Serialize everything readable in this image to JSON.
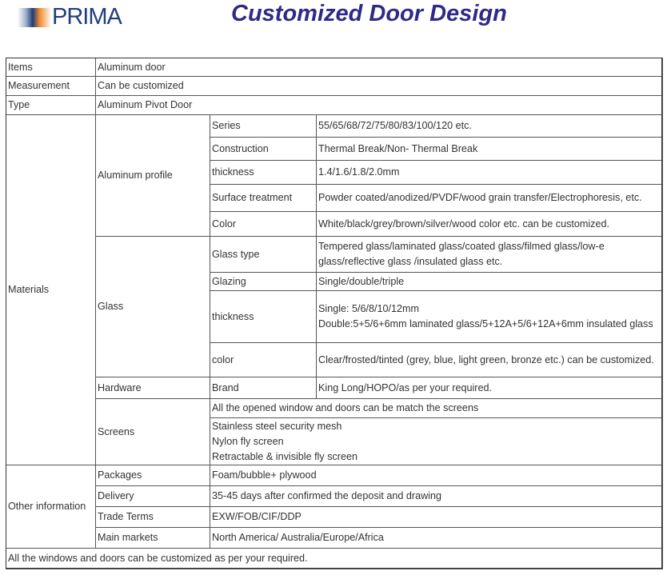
{
  "logo": {
    "text": "PRIMA"
  },
  "title": "Customized Door Design",
  "rows": {
    "items": {
      "label": "Items",
      "value": "Aluminum door"
    },
    "measurement": {
      "label": "Measurement",
      "value": "Can be customized"
    },
    "type": {
      "label": "Type",
      "value": "Aluminum Pivot Door"
    },
    "materials": "Materials",
    "aluminum_profile": "Aluminum profile",
    "series": {
      "label": "Series",
      "value": "55/65/68/72/75/80/83/100/120 etc."
    },
    "construction": {
      "label": "Construction",
      "value": "Thermal Break/Non- Thermal Break"
    },
    "thickness": {
      "label": "thickness",
      "value": "1.4/1.6/1.8/2.0mm"
    },
    "surface": {
      "label": "Surface treatment",
      "value": "Powder coated/anodized/PVDF/wood grain transfer/Electrophoresis, etc."
    },
    "color": {
      "label": "Color",
      "value": "White/black/grey/brown/silver/wood color etc. can be customized."
    },
    "glass": "Glass",
    "glass_type": {
      "label": "Glass type",
      "value": "Tempered glass/laminated glass/coated glass/filmed glass/low-e glass/reflective glass /insulated glass etc."
    },
    "glazing": {
      "label": "Glazing",
      "value": "Single/double/triple"
    },
    "glass_thickness": {
      "label": "thickness",
      "value1": "Single: 5/6/8/10/12mm",
      "value2": "Double:5+5/6+6mm laminated glass/5+12A+5/6+12A+6mm insulated glass"
    },
    "glass_color": {
      "label": "color",
      "value": "Clear/frosted/tinted (grey, blue, light green, bronze etc.) can be customized."
    },
    "hardware": {
      "label": "Hardware",
      "sub": "Brand",
      "value": "King Long/HOPO/as per your required."
    },
    "screens": {
      "label": "Screens",
      "value1": "All the opened window and doors can be match the screens",
      "lines": [
        "Stainless steel security mesh",
        "Nylon fly screen",
        "Retractable & invisible fly screen"
      ]
    },
    "other": "Other information",
    "packages": {
      "label": "Packages",
      "value": "Foam/bubble+ plywood"
    },
    "delivery": {
      "label": "Delivery",
      "value": "35-45 days after confirmed the deposit and drawing"
    },
    "trade": {
      "label": "Trade Terms",
      "value": "EXW/FOB/CIF/DDP"
    },
    "markets": {
      "label": "Main markets",
      "value": "North America/ Australia/Europe/Africa"
    },
    "footer": "All the windows and doors can be customized as per your required."
  }
}
